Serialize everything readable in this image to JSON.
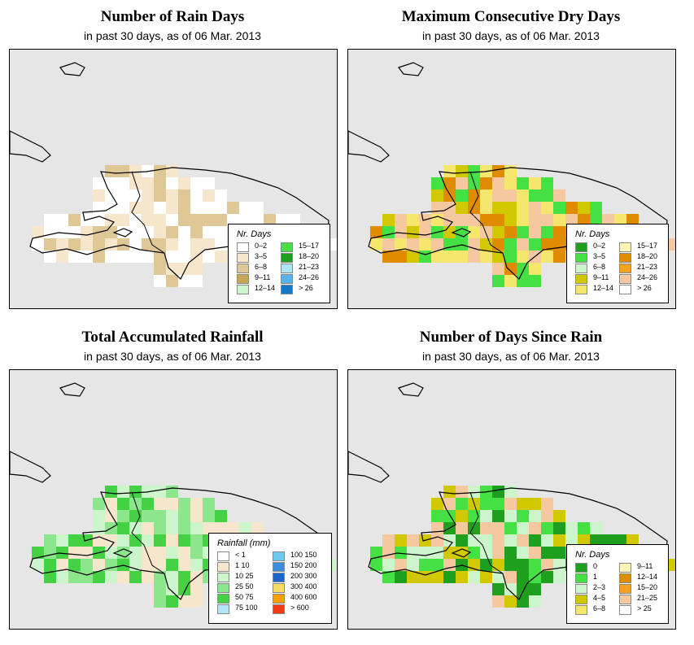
{
  "panels": [
    {
      "id": "rain-days",
      "title": "Number of Rain Days",
      "subtitle": "in past 30 days, as of  06 Mar. 2013",
      "legend": {
        "title": "Nr. Days",
        "items": [
          {
            "label": "0–2",
            "color": "#ffffff"
          },
          {
            "label": "3–5",
            "color": "#f5e6cc"
          },
          {
            "label": "6–8",
            "color": "#e0c896"
          },
          {
            "label": "9–11",
            "color": "#c8a855"
          },
          {
            "label": "12–14",
            "color": "#ccf5cc"
          },
          {
            "label": "15–17",
            "color": "#44e044"
          },
          {
            "label": "18–20",
            "color": "#1ea01e"
          },
          {
            "label": "21–23",
            "color": "#aae6f5"
          },
          {
            "label": "24–26",
            "color": "#55b4f0"
          },
          {
            "label": "> 26",
            "color": "#1478c8"
          }
        ]
      }
    },
    {
      "id": "dry-days",
      "title": "Maximum Consecutive Dry Days",
      "subtitle": "in past 30 days, as of  06 Mar. 2013",
      "legend": {
        "title": "Nr. Days",
        "items": [
          {
            "label": "0–2",
            "color": "#1ea01e"
          },
          {
            "label": "3–5",
            "color": "#44e044"
          },
          {
            "label": "6–8",
            "color": "#ccf5cc"
          },
          {
            "label": "9–11",
            "color": "#d2c800"
          },
          {
            "label": "12–14",
            "color": "#f5e66e"
          },
          {
            "label": "15–17",
            "color": "#fff5b4"
          },
          {
            "label": "18–20",
            "color": "#e08c00"
          },
          {
            "label": "21–23",
            "color": "#f5a01e"
          },
          {
            "label": "24–26",
            "color": "#f5c8a0"
          },
          {
            "label": "> 26",
            "color": "#ffffff"
          }
        ]
      }
    },
    {
      "id": "rainfall",
      "title": "Total Accumulated Rainfall",
      "subtitle": "in past 30 days, as of  06 Mar. 2013",
      "legend": {
        "title": "Rainfall (mm)",
        "items": [
          {
            "label": "< 1",
            "color": "#ffffff"
          },
          {
            "label": "1   10",
            "color": "#f5e6cc"
          },
          {
            "label": "10   25",
            "color": "#ccf5cc"
          },
          {
            "label": "25   50",
            "color": "#8ce68c"
          },
          {
            "label": "50   75",
            "color": "#44d244"
          },
          {
            "label": "75   100",
            "color": "#b4e6f5"
          },
          {
            "label": "100   150",
            "color": "#6ec8f0"
          },
          {
            "label": "150   200",
            "color": "#3c8cdc"
          },
          {
            "label": "200   300",
            "color": "#1e64c8"
          },
          {
            "label": "300   400",
            "color": "#f5dc64"
          },
          {
            "label": "400   600",
            "color": "#f5a000"
          },
          {
            "label": "> 600",
            "color": "#f03c14"
          }
        ]
      }
    },
    {
      "id": "since-rain",
      "title": "Number of Days Since Rain",
      "subtitle": "in past 30 days, as of  06 Mar. 2013",
      "legend": {
        "title": "Nr. Days",
        "items": [
          {
            "label": "0",
            "color": "#1ea01e"
          },
          {
            "label": "1",
            "color": "#44e044"
          },
          {
            "label": "2–3",
            "color": "#ccf5cc"
          },
          {
            "label": "4–5",
            "color": "#d2c800"
          },
          {
            "label": "6–8",
            "color": "#f5e66e"
          },
          {
            "label": "9–11",
            "color": "#fff5b4"
          },
          {
            "label": "12–14",
            "color": "#e08c00"
          },
          {
            "label": "15–20",
            "color": "#f5a01e"
          },
          {
            "label": "21–25",
            "color": "#f5c8a0"
          },
          {
            "label": "> 25",
            "color": "#ffffff"
          }
        ]
      }
    }
  ]
}
